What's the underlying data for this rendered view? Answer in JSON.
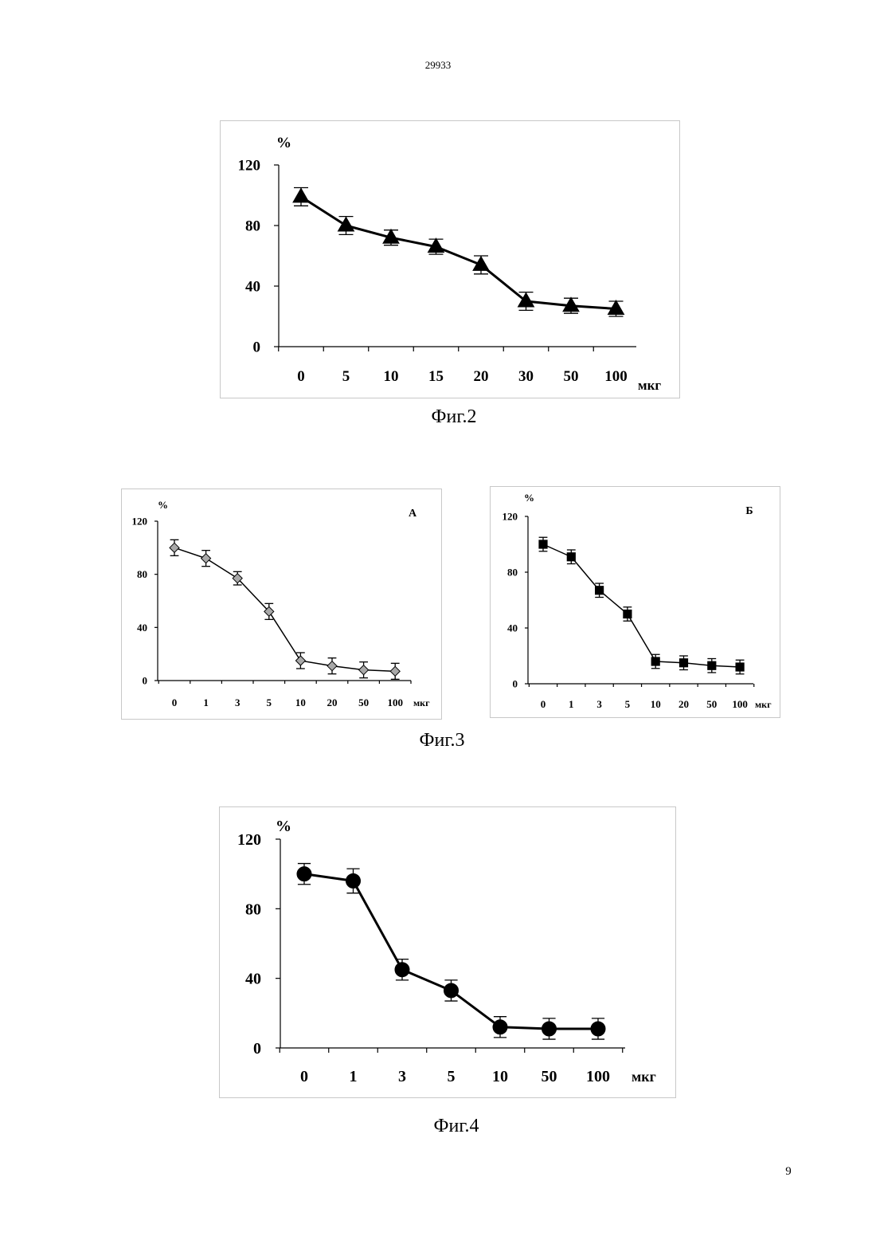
{
  "page": {
    "document_number": "29933",
    "page_number": "9"
  },
  "chart_data": [
    {
      "id": "fig2",
      "type": "line",
      "caption": "Фиг.2",
      "panel_label": "",
      "ylabel": "%",
      "xlabel": "мкг",
      "categories": [
        "0",
        "5",
        "10",
        "15",
        "20",
        "30",
        "50",
        "100"
      ],
      "series": [
        {
          "marker": "triangle",
          "color": "#000000",
          "values": [
            99,
            80,
            72,
            66,
            54,
            30,
            27,
            25
          ],
          "errors": [
            6,
            6,
            5,
            5,
            6,
            6,
            5,
            5
          ]
        }
      ],
      "ylim": [
        0,
        120
      ],
      "yticks": [
        0,
        40,
        80,
        120
      ],
      "grid": false
    },
    {
      "id": "fig3a",
      "type": "line",
      "caption": "",
      "panel_label": "А",
      "ylabel": "%",
      "xlabel": "мкг",
      "categories": [
        "0",
        "1",
        "3",
        "5",
        "10",
        "20",
        "50",
        "100"
      ],
      "series": [
        {
          "marker": "diamond",
          "color": "#a8a8a8",
          "values": [
            100,
            92,
            77,
            52,
            15,
            11,
            8,
            7
          ],
          "errors": [
            6,
            6,
            5,
            6,
            6,
            6,
            6,
            6
          ]
        }
      ],
      "ylim": [
        0,
        120
      ],
      "yticks": [
        0,
        40,
        80,
        120
      ],
      "grid": false
    },
    {
      "id": "fig3b",
      "type": "line",
      "caption": "Фиг.3",
      "panel_label": "Б",
      "ylabel": "%",
      "xlabel": "мкг",
      "categories": [
        "0",
        "1",
        "3",
        "5",
        "10",
        "20",
        "50",
        "100"
      ],
      "series": [
        {
          "marker": "square",
          "color": "#000000",
          "values": [
            100,
            91,
            67,
            50,
            16,
            15,
            13,
            12
          ],
          "errors": [
            5,
            5,
            5,
            5,
            5,
            5,
            5,
            5
          ]
        }
      ],
      "ylim": [
        0,
        120
      ],
      "yticks": [
        0,
        40,
        80,
        120
      ],
      "grid": false
    },
    {
      "id": "fig4",
      "type": "line",
      "caption": "Фиг.4",
      "panel_label": "",
      "ylabel": "%",
      "xlabel": "мкг",
      "categories": [
        "0",
        "1",
        "3",
        "5",
        "10",
        "50",
        "100"
      ],
      "series": [
        {
          "marker": "circle",
          "color": "#000000",
          "values": [
            100,
            96,
            45,
            33,
            12,
            11,
            11
          ],
          "errors": [
            6,
            7,
            6,
            6,
            6,
            6,
            6
          ]
        }
      ],
      "ylim": [
        0,
        120
      ],
      "yticks": [
        0,
        40,
        80,
        120
      ],
      "grid": false
    }
  ]
}
